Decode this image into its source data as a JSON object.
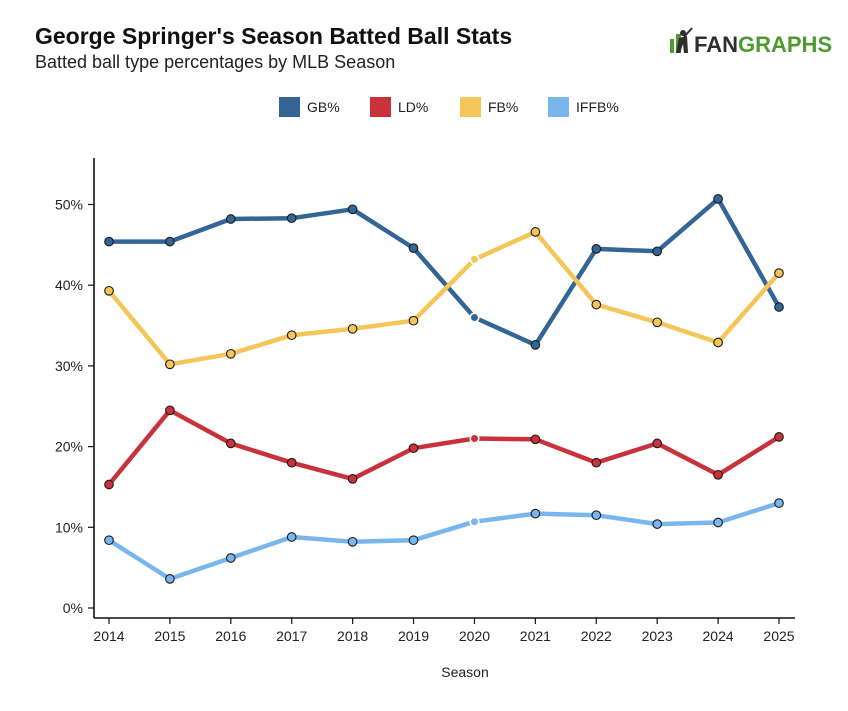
{
  "header": {
    "title": "George Springer's Season Batted Ball Stats",
    "subtitle": "Batted ball type percentages by MLB Season"
  },
  "brand": {
    "part1": "FAN",
    "part2": "GRAPHS",
    "color_dark": "#2e2e2e",
    "color_green": "#4e9a2f",
    "icon": "batter-silhouette-icon"
  },
  "chart_data": {
    "type": "line",
    "title": "George Springer's Season Batted Ball Stats",
    "subtitle": "Batted ball type percentages by MLB Season",
    "xlabel": "Season",
    "ylabel": "",
    "x": [
      "2014",
      "2015",
      "2016",
      "2017",
      "2018",
      "2019",
      "2020",
      "2021",
      "2022",
      "2023",
      "2024",
      "2025"
    ],
    "ylim": [
      0,
      55
    ],
    "yticks": [
      0,
      10,
      20,
      30,
      40,
      50
    ],
    "ytick_labels": [
      "0%",
      "10%",
      "20%",
      "30%",
      "40%",
      "50%"
    ],
    "legend_position": "top-center",
    "grid": false,
    "highlight_index": 6,
    "series": [
      {
        "name": "GB%",
        "color": "#346597",
        "values": [
          45.4,
          45.4,
          48.2,
          48.3,
          49.4,
          44.6,
          36.0,
          32.6,
          44.5,
          44.2,
          50.7,
          37.3
        ]
      },
      {
        "name": "LD%",
        "color": "#c9323a",
        "values": [
          15.3,
          24.5,
          20.4,
          18.0,
          16.0,
          19.8,
          21.0,
          20.9,
          18.0,
          20.4,
          16.5,
          21.2
        ]
      },
      {
        "name": "FB%",
        "color": "#f4c65a",
        "values": [
          39.3,
          30.2,
          31.5,
          33.8,
          34.6,
          35.6,
          43.2,
          46.6,
          37.6,
          35.4,
          32.9,
          41.5
        ]
      },
      {
        "name": "IFFB%",
        "color": "#7ab6ee",
        "values": [
          8.4,
          3.6,
          6.2,
          8.8,
          8.2,
          8.4,
          10.7,
          11.7,
          11.5,
          10.4,
          10.6,
          13.0
        ]
      }
    ]
  }
}
